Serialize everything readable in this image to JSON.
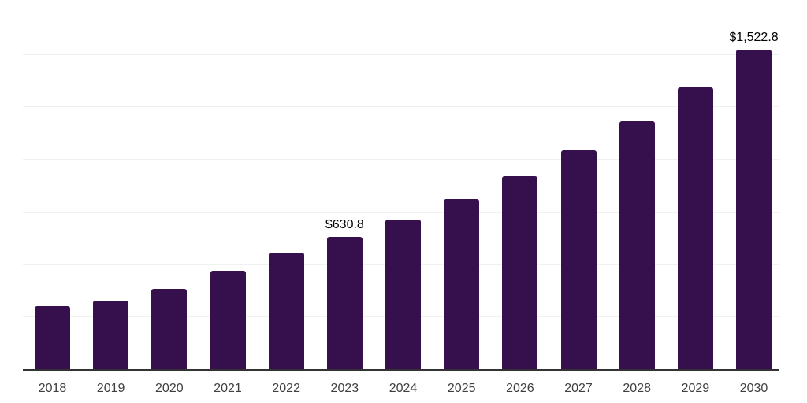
{
  "chart_data": {
    "type": "bar",
    "title": "",
    "xlabel": "",
    "ylabel": "",
    "categories": [
      "2018",
      "2019",
      "2020",
      "2021",
      "2022",
      "2023",
      "2024",
      "2025",
      "2026",
      "2027",
      "2028",
      "2029",
      "2030"
    ],
    "values": [
      299,
      328,
      384,
      467,
      554,
      630.8,
      713,
      811,
      920,
      1042,
      1181,
      1342,
      1522.8
    ],
    "data_labels": {
      "2023": "$630.8",
      "2030": "$1,522.8"
    },
    "ylim": [
      0,
      1750
    ],
    "gridline_step": 250,
    "grid": "horizontal",
    "legend": "none",
    "colors": {
      "bar": "#36104D",
      "axis_line": "#333333",
      "gridline": "#f0f0f0",
      "tick_label": "#3f3f3f",
      "data_label": "#000000",
      "background": "#ffffff"
    }
  }
}
